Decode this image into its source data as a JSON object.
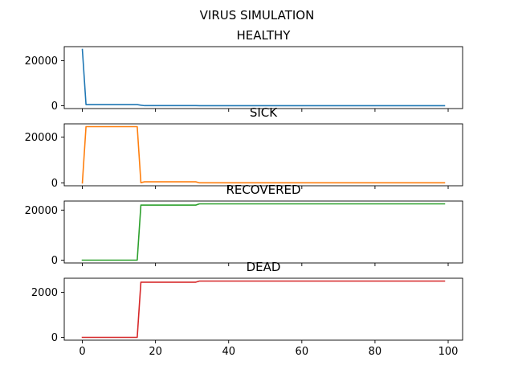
{
  "figure": {
    "suptitle": "VIRUS SIMULATION"
  },
  "chart_data": [
    {
      "type": "line",
      "title": "HEALTHY",
      "xlabel": "",
      "ylabel": "",
      "xlim": [
        -4.95,
        103.95
      ],
      "ylim": [
        -1250,
        26250
      ],
      "yticks": [
        0,
        20000
      ],
      "ytick_labels": [
        "0",
        "20000"
      ],
      "xticks": [
        0,
        20,
        40,
        60,
        80,
        100
      ],
      "xtick_labels": [],
      "color": "#1f77b4",
      "points": [
        [
          0,
          25000
        ],
        [
          1,
          500
        ],
        [
          15,
          500
        ],
        [
          16,
          250
        ],
        [
          17,
          50
        ],
        [
          31,
          50
        ],
        [
          32,
          10
        ],
        [
          99,
          10
        ]
      ]
    },
    {
      "type": "line",
      "title": "SICK",
      "xlabel": "",
      "ylabel": "",
      "xlim": [
        -4.95,
        103.95
      ],
      "ylim": [
        -1225,
        25725
      ],
      "yticks": [
        0,
        20000
      ],
      "ytick_labels": [
        "0",
        "20000"
      ],
      "xticks": [
        0,
        20,
        40,
        60,
        80,
        100
      ],
      "xtick_labels": [],
      "color": "#ff7f0e",
      "points": [
        [
          0,
          0
        ],
        [
          1,
          24500
        ],
        [
          15,
          24500
        ],
        [
          16,
          100
        ],
        [
          17,
          500
        ],
        [
          31,
          500
        ],
        [
          32,
          50
        ],
        [
          99,
          50
        ]
      ]
    },
    {
      "type": "line",
      "title": "RECOVERED",
      "xlabel": "",
      "ylabel": "",
      "xlim": [
        -4.95,
        103.95
      ],
      "ylim": [
        -1125,
        23625
      ],
      "yticks": [
        0,
        20000
      ],
      "ytick_labels": [
        "0",
        "20000"
      ],
      "xticks": [
        0,
        20,
        40,
        60,
        80,
        100
      ],
      "xtick_labels": [],
      "color": "#2ca02c",
      "points": [
        [
          0,
          0
        ],
        [
          15,
          0
        ],
        [
          16,
          22000
        ],
        [
          31,
          22000
        ],
        [
          32,
          22500
        ],
        [
          99,
          22500
        ]
      ]
    },
    {
      "type": "line",
      "title": "DEAD",
      "xlabel": "",
      "ylabel": "",
      "xlim": [
        -4.95,
        103.95
      ],
      "ylim": [
        -125,
        2625
      ],
      "yticks": [
        0,
        2000
      ],
      "ytick_labels": [
        "0",
        "2000"
      ],
      "xticks": [
        0,
        20,
        40,
        60,
        80,
        100
      ],
      "xtick_labels": [
        "0",
        "20",
        "40",
        "60",
        "80",
        "100"
      ],
      "color": "#d62728",
      "points": [
        [
          0,
          0
        ],
        [
          15,
          0
        ],
        [
          16,
          2450
        ],
        [
          31,
          2450
        ],
        [
          32,
          2500
        ],
        [
          99,
          2500
        ]
      ]
    }
  ]
}
